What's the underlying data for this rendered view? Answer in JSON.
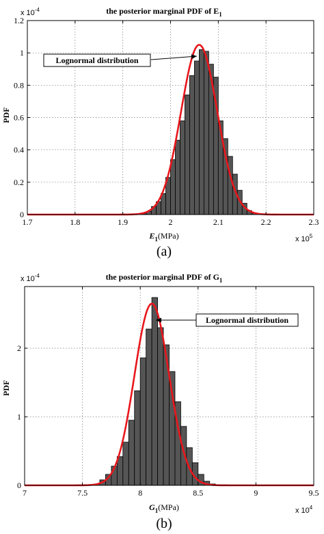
{
  "chart_data": [
    {
      "type": "bar",
      "panel_label": "(a)",
      "title": "the posterior marginal PDF of E",
      "title_sub": "1",
      "ylabel": "PDF",
      "xlabel_main": "E",
      "xlabel_sub": "1",
      "xlabel_unit": "(MPa)",
      "x_multiplier": "x 10",
      "x_multiplier_exp": "5",
      "y_multiplier": "x 10",
      "y_multiplier_exp": "-4",
      "xlim": [
        1.7,
        2.3
      ],
      "ylim": [
        0,
        1.2
      ],
      "xticks": [
        "1.7",
        "1.8",
        "1.9",
        "2",
        "2.1",
        "2.2",
        "2.3"
      ],
      "yticks": [
        "0",
        "0.2",
        "0.4",
        "0.6",
        "0.8",
        "1",
        "1.2"
      ],
      "grid": true,
      "bin_width": 0.01,
      "bins": [
        {
          "x": 1.945,
          "y": 0.005
        },
        {
          "x": 1.955,
          "y": 0.02
        },
        {
          "x": 1.965,
          "y": 0.05
        },
        {
          "x": 1.975,
          "y": 0.08
        },
        {
          "x": 1.985,
          "y": 0.13
        },
        {
          "x": 1.995,
          "y": 0.23
        },
        {
          "x": 2.005,
          "y": 0.34
        },
        {
          "x": 2.015,
          "y": 0.46
        },
        {
          "x": 2.025,
          "y": 0.58
        },
        {
          "x": 2.035,
          "y": 0.74
        },
        {
          "x": 2.045,
          "y": 0.86
        },
        {
          "x": 2.055,
          "y": 0.95
        },
        {
          "x": 2.065,
          "y": 1.02
        },
        {
          "x": 2.075,
          "y": 1.01
        },
        {
          "x": 2.085,
          "y": 0.93
        },
        {
          "x": 2.095,
          "y": 0.85
        },
        {
          "x": 2.105,
          "y": 0.58
        },
        {
          "x": 2.115,
          "y": 0.47
        },
        {
          "x": 2.125,
          "y": 0.36
        },
        {
          "x": 2.135,
          "y": 0.25
        },
        {
          "x": 2.145,
          "y": 0.15
        },
        {
          "x": 2.155,
          "y": 0.07
        },
        {
          "x": 2.165,
          "y": 0.025
        },
        {
          "x": 2.175,
          "y": 0.008
        }
      ],
      "curve": {
        "name": "Lognormal distribution",
        "peak_x": 2.06,
        "peak_y": 1.05,
        "sigma": 0.038,
        "color": "#e8161b"
      },
      "annotation": "Lognormal distribution",
      "bar_color": "#555555"
    },
    {
      "type": "bar",
      "panel_label": "(b)",
      "title": "the posterior marginal PDF of G",
      "title_sub": "1",
      "ylabel": "PDF",
      "xlabel_main": "G",
      "xlabel_sub": "1",
      "xlabel_unit": "(MPa)",
      "x_multiplier": "x 10",
      "x_multiplier_exp": "4",
      "y_multiplier": "x 10",
      "y_multiplier_exp": "-4",
      "xlim": [
        7,
        9.5
      ],
      "ylim": [
        0,
        2.9
      ],
      "xticks": [
        "7",
        "7.5",
        "8",
        "8.5",
        "9",
        "9.5"
      ],
      "yticks": [
        "0",
        "1",
        "2"
      ],
      "ytick_values": [
        0,
        1,
        2
      ],
      "grid": true,
      "bin_width": 0.05,
      "bins": [
        {
          "x": 7.625,
          "y": 0.02
        },
        {
          "x": 7.675,
          "y": 0.08
        },
        {
          "x": 7.725,
          "y": 0.16
        },
        {
          "x": 7.775,
          "y": 0.28
        },
        {
          "x": 7.825,
          "y": 0.42
        },
        {
          "x": 7.875,
          "y": 0.63
        },
        {
          "x": 7.925,
          "y": 0.95
        },
        {
          "x": 7.975,
          "y": 1.38
        },
        {
          "x": 8.025,
          "y": 1.86
        },
        {
          "x": 8.075,
          "y": 2.28
        },
        {
          "x": 8.125,
          "y": 2.74
        },
        {
          "x": 8.175,
          "y": 2.3
        },
        {
          "x": 8.225,
          "y": 2.05
        },
        {
          "x": 8.275,
          "y": 1.66
        },
        {
          "x": 8.325,
          "y": 1.22
        },
        {
          "x": 8.375,
          "y": 0.86
        },
        {
          "x": 8.425,
          "y": 0.55
        },
        {
          "x": 8.475,
          "y": 0.33
        },
        {
          "x": 8.525,
          "y": 0.16
        },
        {
          "x": 8.575,
          "y": 0.06
        },
        {
          "x": 8.625,
          "y": 0.02
        }
      ],
      "curve": {
        "name": "Lognormal distribution",
        "peak_x": 8.1,
        "peak_y": 2.65,
        "sigma": 0.15,
        "color": "#e8161b"
      },
      "annotation": "Lognormal distribution",
      "bar_color": "#555555"
    }
  ]
}
